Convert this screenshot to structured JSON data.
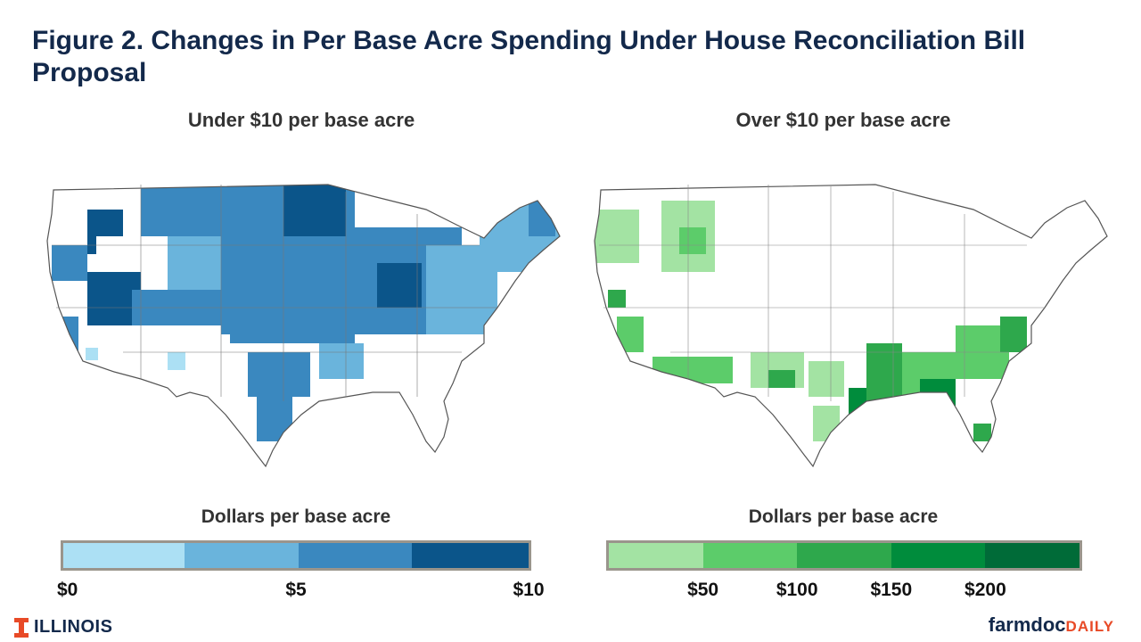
{
  "figure": {
    "title": "Figure 2. Changes in Per Base Acre Spending Under House Reconciliation Bill Proposal"
  },
  "maps": {
    "left": {
      "title": "Under $10 per base acre",
      "palette": [
        "#ace0f4",
        "#6ab4dc",
        "#3a88bf",
        "#0b558a"
      ]
    },
    "right": {
      "title": "Over $10 per base acre",
      "palette": [
        "#a3e3a3",
        "#5ccc6a",
        "#2ea84c",
        "#008c3c",
        "#006b38"
      ]
    }
  },
  "legends": {
    "left": {
      "title": "Dollars per base acre",
      "colors": [
        "#ace0f4",
        "#6ab4dc",
        "#3a88bf",
        "#0b558a"
      ],
      "bin_edges": [
        0,
        2.5,
        5,
        7.5,
        10
      ],
      "ticks": [
        {
          "label": "$0",
          "value": 0
        },
        {
          "label": "$5",
          "value": 5
        },
        {
          "label": "$10",
          "value": 10
        }
      ]
    },
    "right": {
      "title": "Dollars per base acre",
      "colors": [
        "#a3e3a3",
        "#5ccc6a",
        "#2ea84c",
        "#008c3c",
        "#006b38"
      ],
      "ticks": [
        {
          "label": "$50",
          "value": 50
        },
        {
          "label": "$100",
          "value": 100
        },
        {
          "label": "$150",
          "value": 150
        },
        {
          "label": "$200",
          "value": 200
        }
      ]
    }
  },
  "footer": {
    "left_brand": "ILLINOIS",
    "right_brand_a": "farmdoc",
    "right_brand_b": "DAILY",
    "left_brand_color": "#13294b",
    "right_brand_accent": "#e84a27"
  }
}
